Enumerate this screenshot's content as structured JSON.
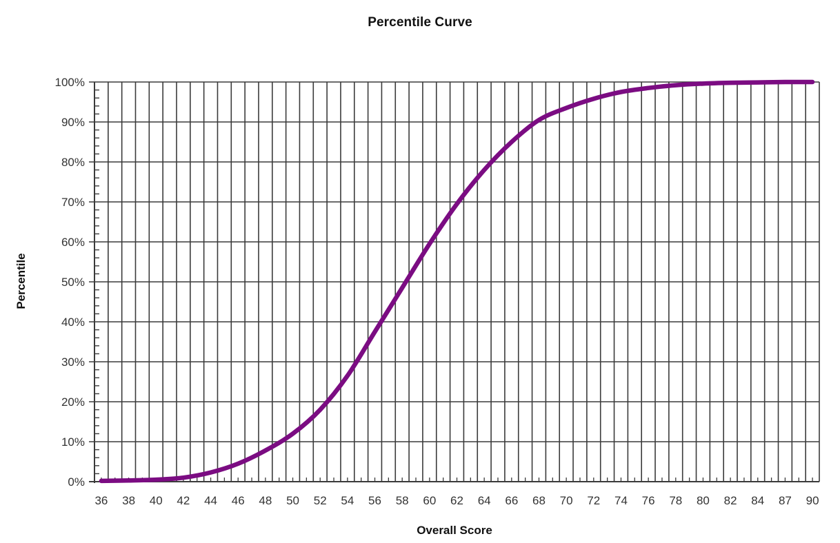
{
  "chart": {
    "title": "Percentile Curve",
    "xlabel": "Overall Score",
    "ylabel": "Percentile"
  },
  "style": {
    "line_color": "#7b0c82",
    "grid_color": "#3a3a3a",
    "axis_color": "#3a3a3a",
    "background": "#ffffff"
  },
  "chart_data": {
    "type": "line",
    "title": "Percentile Curve",
    "xlabel": "Overall Score",
    "ylabel": "Percentile",
    "x_tick_labels": [
      "36",
      "38",
      "40",
      "42",
      "44",
      "46",
      "48",
      "50",
      "52",
      "54",
      "56",
      "58",
      "60",
      "62",
      "64",
      "66",
      "68",
      "70",
      "72",
      "74",
      "76",
      "78",
      "80",
      "82",
      "84",
      "87",
      "90"
    ],
    "y_tick_labels": [
      "0%",
      "10%",
      "20%",
      "30%",
      "40%",
      "50%",
      "60%",
      "70%",
      "80%",
      "90%",
      "100%"
    ],
    "ylim": [
      0,
      100
    ],
    "grid": true,
    "legend": "none",
    "series": [
      {
        "name": "Percentile",
        "x": [
          36,
          38,
          40,
          42,
          44,
          46,
          48,
          50,
          52,
          54,
          56,
          58,
          60,
          62,
          64,
          66,
          68,
          70,
          72,
          74,
          76,
          78,
          80,
          82,
          84,
          87,
          90
        ],
        "values": [
          0.2,
          0.3,
          0.5,
          1.0,
          2.3,
          4.5,
          7.8,
          12.0,
          18.0,
          26.5,
          37.5,
          48.5,
          59.5,
          69.5,
          78.0,
          85.0,
          90.5,
          93.5,
          95.8,
          97.5,
          98.5,
          99.2,
          99.6,
          99.8,
          99.9,
          100,
          100
        ]
      }
    ]
  }
}
